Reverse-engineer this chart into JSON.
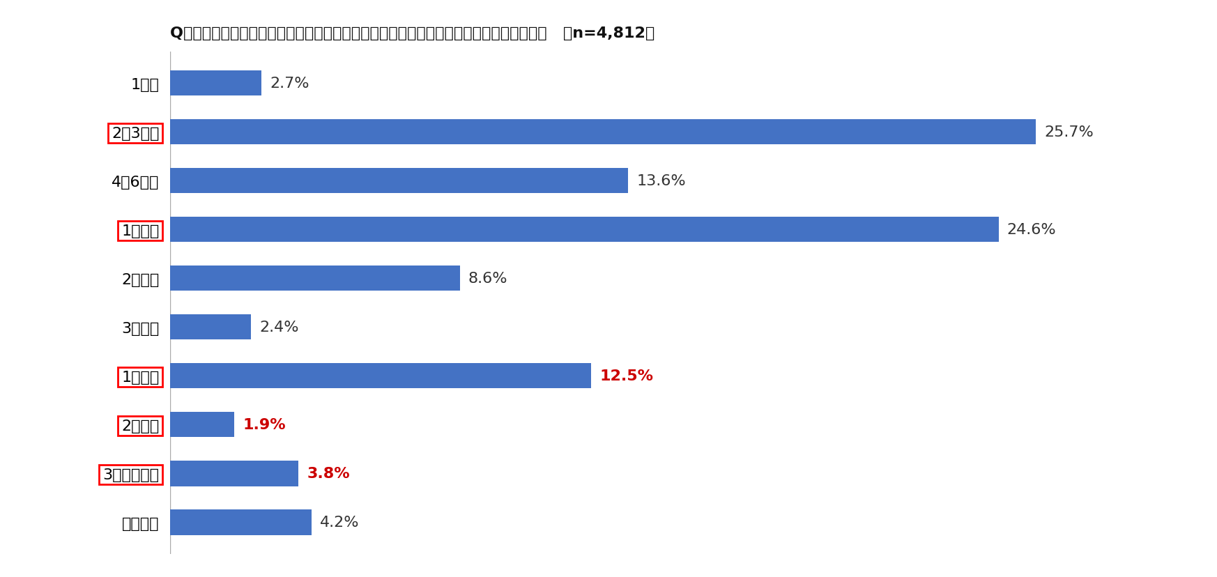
{
  "title": "Q：災害に備え、普段から備蓄している「日用品」はどのくらいの量（何日分）ですか？",
  "title_n": "（n=4,812）",
  "categories": [
    "1日分",
    "2〜3日分",
    "4〜6日分",
    "1週間分",
    "2週間分",
    "3週間分",
    "1カ月分",
    "2カ月分",
    "3カ月分以上",
    "備蓄なし"
  ],
  "values": [
    2.7,
    25.7,
    13.6,
    24.6,
    8.6,
    2.4,
    12.5,
    1.9,
    3.8,
    4.2
  ],
  "bar_color": "#4472C4",
  "highlighted_labels": [
    "2〜3日分",
    "1週間分",
    "1カ月分",
    "2カ月分",
    "3カ月分以上"
  ],
  "red_value_labels": [
    "1カ月分",
    "2カ月分",
    "3カ月分以上"
  ],
  "bg_color": "#ffffff",
  "label_color_normal": "#333333",
  "label_color_red": "#cc0000",
  "xlim": [
    0,
    30
  ],
  "bar_height": 0.52,
  "title_fontsize": 16,
  "tick_fontsize": 16,
  "value_fontsize": 16
}
